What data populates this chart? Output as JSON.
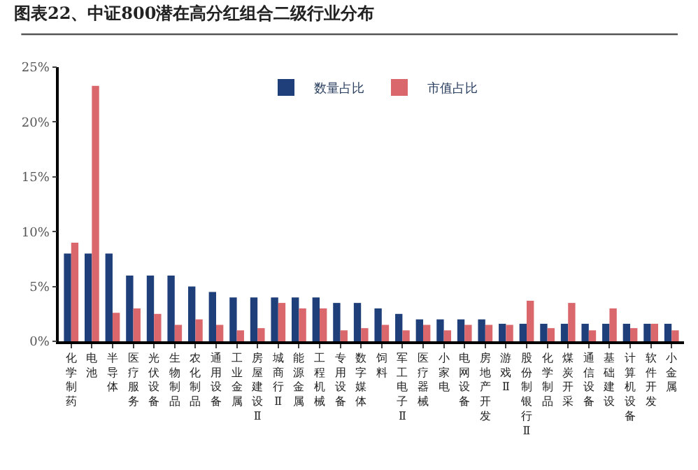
{
  "chart_data": {
    "type": "bar",
    "title": "图表22、中证800潜在高分红组合二级行业分布",
    "categories": [
      "化学制药",
      "电池",
      "半导体",
      "医疗服务",
      "光伏设备",
      "生物制品",
      "农化制品",
      "通用设备",
      "工业金属",
      "房屋建设Ⅱ",
      "城商行Ⅱ",
      "能源金属",
      "工程机械",
      "专用设备",
      "数字媒体",
      "饲料",
      "军工电子Ⅱ",
      "医疗器械",
      "小家电",
      "电网设备",
      "房地产开发",
      "游戏Ⅱ",
      "股份制银行Ⅱ",
      "化学制品",
      "煤炭开采",
      "通信设备",
      "基础建设",
      "计算机设备",
      "软件开发",
      "小金属"
    ],
    "series": [
      {
        "name": "数量占比",
        "color": "#1f3f7a",
        "values": [
          8,
          8,
          8,
          6,
          6,
          6,
          5,
          4.5,
          4,
          4,
          4,
          4,
          4,
          3.5,
          3.5,
          3,
          2.5,
          2,
          2,
          2,
          2,
          1.6,
          1.6,
          1.6,
          1.6,
          1.6,
          1.6,
          1.6,
          1.6,
          1.6
        ]
      },
      {
        "name": "市值占比",
        "color": "#d9676b",
        "values": [
          9,
          23.3,
          2.6,
          3,
          2.5,
          1.5,
          2,
          1.5,
          1,
          1.2,
          3.5,
          3,
          3,
          1,
          1.2,
          1.5,
          1,
          1.5,
          1,
          1.5,
          1.5,
          1.5,
          3.7,
          1.2,
          3.5,
          1,
          3,
          1.2,
          1.6,
          1
        ]
      }
    ],
    "ylim": [
      0,
      25
    ],
    "yticks": [
      {
        "value": 0,
        "label": "0%"
      },
      {
        "value": 5,
        "label": "5%"
      },
      {
        "value": 10,
        "label": "10%"
      },
      {
        "value": 15,
        "label": "15%"
      },
      {
        "value": 20,
        "label": "20%"
      },
      {
        "value": 25,
        "label": "25%"
      }
    ],
    "legend": "top"
  }
}
